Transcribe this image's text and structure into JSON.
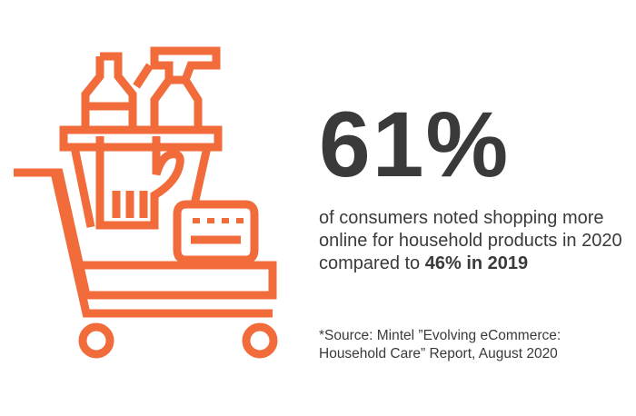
{
  "colors": {
    "accent": "#f26b3a",
    "text": "#3a3a3a",
    "background": "#ffffff"
  },
  "illustration": {
    "icon": "shopping-cart-with-cleaning-products-icon"
  },
  "stat": {
    "number": "61%",
    "description_start": "of consumers noted shopping more online for household products in 2020 compared to ",
    "description_highlight": "46% in 2019"
  },
  "source": {
    "line1": "*Source: Mintel ”Evolving eCommerce:",
    "line2": "Household Care” Report, August 2020"
  }
}
